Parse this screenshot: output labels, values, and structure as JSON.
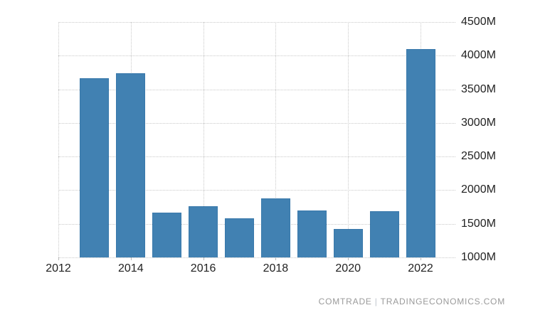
{
  "chart_data": {
    "type": "bar",
    "categories": [
      2013,
      2014,
      2015,
      2016,
      2017,
      2018,
      2019,
      2020,
      2021,
      2022
    ],
    "values": [
      3670,
      3740,
      1670,
      1760,
      1580,
      1880,
      1700,
      1420,
      1690,
      4100
    ],
    "unit": "M",
    "title": "",
    "xlabel": "",
    "ylabel": "",
    "ylim": [
      1000,
      4500
    ],
    "ytick_step": 500,
    "ytick_labels": [
      "4500M",
      "4000M",
      "3500M",
      "3000M",
      "2500M",
      "2000M",
      "1500M",
      "1000M"
    ],
    "ytick_values": [
      4500,
      4000,
      3500,
      3000,
      2500,
      2000,
      1500,
      1000
    ],
    "xtick_years": [
      2012,
      2014,
      2016,
      2018,
      2020,
      2022
    ],
    "xtick_labels": [
      "2012",
      "2014",
      "2016",
      "2018",
      "2020",
      "2022"
    ],
    "grid": true,
    "legend": "none",
    "bar_color": "#4181b2",
    "bar_border_color": "#3a79ab",
    "grid_color": "#c9c9c9",
    "axis_label_color": "#222222"
  },
  "footer": {
    "source": "COMTRADE",
    "separator": "|",
    "site": "TRADINGECONOMICS.COM"
  }
}
